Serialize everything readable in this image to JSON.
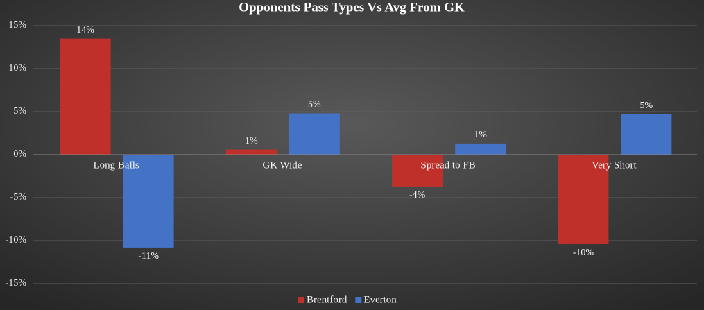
{
  "chart_data": {
    "type": "bar",
    "title": "Opponents Pass Types Vs Avg From GK",
    "categories": [
      "Long Balls",
      "GK Wide",
      "Spread to FB",
      "Very Short"
    ],
    "series": [
      {
        "name": "Brentford",
        "color": "#c0302a",
        "values": [
          13.5,
          0.6,
          -3.7,
          -10.4
        ],
        "value_labels": [
          "14%",
          "1%",
          "-4%",
          "-10%"
        ]
      },
      {
        "name": "Everton",
        "color": "#4472c4",
        "values": [
          -10.8,
          4.8,
          1.3,
          4.7
        ],
        "value_labels": [
          "-11%",
          "5%",
          "1%",
          "5%"
        ]
      }
    ],
    "ylim": [
      -15,
      15
    ],
    "yticks": [
      {
        "value": -15,
        "label": "-15%"
      },
      {
        "value": -10,
        "label": "-10%"
      },
      {
        "value": -5,
        "label": "-5%"
      },
      {
        "value": 0,
        "label": "0%"
      },
      {
        "value": 5,
        "label": "5%"
      },
      {
        "value": 10,
        "label": "10%"
      },
      {
        "value": 15,
        "label": "15%"
      }
    ],
    "grid": true,
    "legend": "bottom"
  }
}
